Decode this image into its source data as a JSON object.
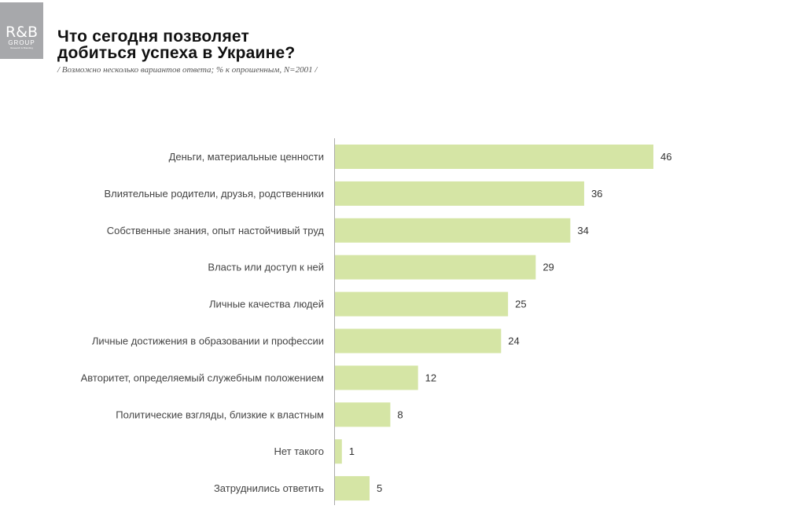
{
  "logo": {
    "main": "R&B",
    "group": "GROUP",
    "sub": "Research & Branding"
  },
  "title_line1": "Что сегодня позволяет",
  "title_line2": "добиться успеха в Украине?",
  "subtitle": "/ Возможно несколько вариантов ответа; % к опрошенным, N=2001 /",
  "colors": {
    "bar": "#d5e5a5",
    "axis": "#aaaaaa"
  },
  "chart_data": {
    "type": "bar",
    "orientation": "horizontal",
    "title": "Что сегодня позволяет добиться успеха в Украине?",
    "categories": [
      "Деньги, материальные ценности",
      "Влиятельные родители, друзья, родственники",
      "Собственные знания, опыт настойчивый труд",
      "Власть или доступ к ней",
      "Личные качества людей",
      "Личные достижения в образовании и профессии",
      "Авторитет, определяемый служебным положением",
      "Политические взгляды, близкие к властным",
      "Нет такого",
      "Затруднились ответить"
    ],
    "values": [
      46,
      36,
      34,
      29,
      25,
      24,
      12,
      8,
      1,
      5
    ],
    "xlim": [
      0,
      46
    ],
    "unit": "%"
  }
}
